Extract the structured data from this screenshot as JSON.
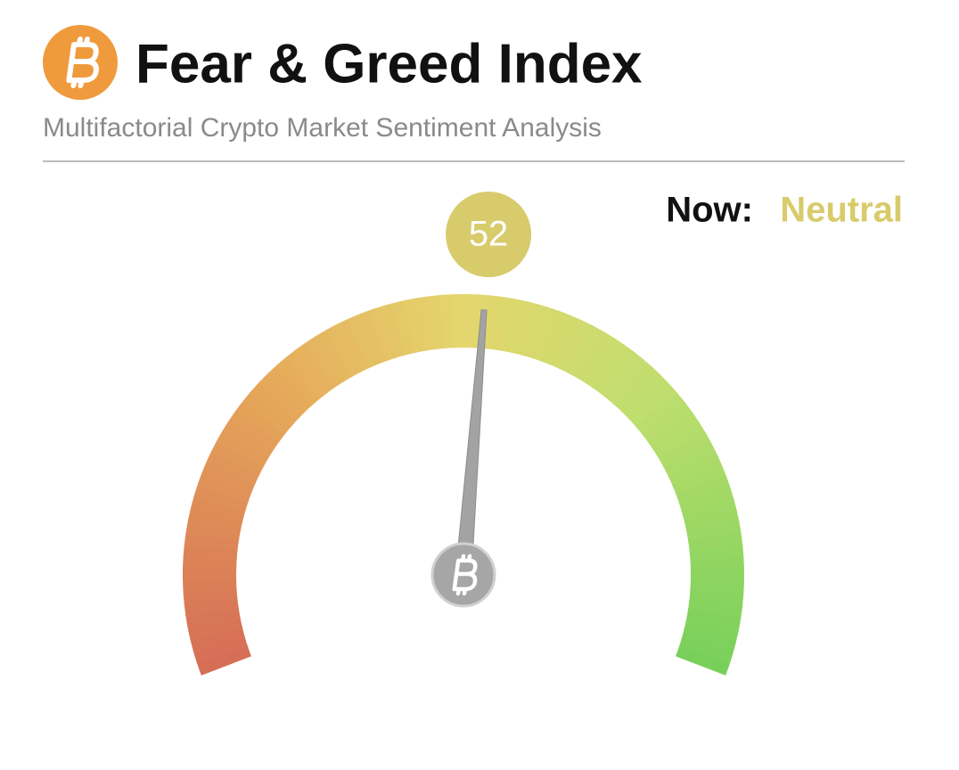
{
  "chart_data": {
    "type": "gauge",
    "title": "Fear & Greed Index",
    "subtitle": "Multifactorial Crypto Market Sentiment Analysis",
    "label_prefix": "Now:",
    "classification": "Neutral",
    "classification_color": "#d8cb6c",
    "value": 52,
    "ylim": [
      0,
      100
    ]
  }
}
